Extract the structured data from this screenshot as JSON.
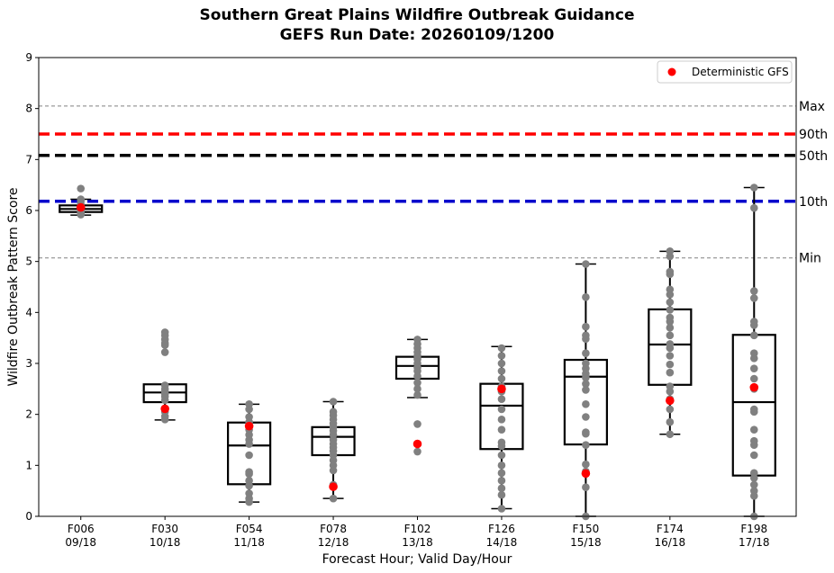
{
  "chart_data": {
    "type": "box",
    "title": "Southern Great Plains Wildfire Outbreak Guidance",
    "subtitle": "GEFS Run Date: 20260109/1200",
    "xlabel": "Forecast Hour; Valid Day/Hour",
    "ylabel": "Wildfire Outbreak Pattern Score",
    "ylim": [
      0,
      9
    ],
    "yticks": [
      0,
      1,
      2,
      3,
      4,
      5,
      6,
      7,
      8,
      9
    ],
    "legend": {
      "label": "Deterministic GFS",
      "position": "top-right",
      "color": "#ff0000"
    },
    "reference_lines": [
      {
        "label": "Max",
        "value": 8.05,
        "color": "#808080",
        "style": "dashed-thin"
      },
      {
        "label": "90th",
        "value": 7.5,
        "color": "#ff0000",
        "style": "dashed-thick"
      },
      {
        "label": "50th",
        "value": 7.08,
        "color": "#000000",
        "style": "dashed-thick"
      },
      {
        "label": "10th",
        "value": 6.18,
        "color": "#0000cc",
        "style": "dashed-thick"
      },
      {
        "label": "Min",
        "value": 5.07,
        "color": "#808080",
        "style": "dashed-thin"
      }
    ],
    "categories": [
      {
        "hour": "F006",
        "valid": "09/18",
        "whisker_low": 5.91,
        "q1": 5.97,
        "median": 6.03,
        "q3": 6.1,
        "whisker_high": 6.22,
        "deterministic": 6.06,
        "members": [
          6.43,
          6.22,
          6.18,
          6.12,
          6.08,
          6.05,
          6.02,
          6.0,
          5.98,
          5.95,
          5.92
        ]
      },
      {
        "hour": "F030",
        "valid": "10/18",
        "whisker_low": 1.89,
        "q1": 2.24,
        "median": 2.43,
        "q3": 2.59,
        "whisker_high": 2.59,
        "deterministic": 2.11,
        "members": [
          3.61,
          3.55,
          3.47,
          3.4,
          3.36,
          3.22,
          2.57,
          2.5,
          2.45,
          2.4,
          2.35,
          2.28,
          2.1,
          2.05,
          1.96,
          1.9
        ]
      },
      {
        "hour": "F054",
        "valid": "11/18",
        "whisker_low": 0.28,
        "q1": 0.63,
        "median": 1.39,
        "q3": 1.84,
        "whisker_high": 2.2,
        "deterministic": 1.77,
        "members": [
          2.2,
          2.1,
          1.95,
          1.85,
          1.78,
          1.7,
          1.6,
          1.5,
          1.42,
          1.2,
          0.87,
          0.83,
          0.7,
          0.6,
          0.45,
          0.35,
          0.28
        ]
      },
      {
        "hour": "F078",
        "valid": "12/18",
        "whisker_low": 0.35,
        "q1": 1.2,
        "median": 1.56,
        "q3": 1.75,
        "whisker_high": 2.25,
        "deterministic": 0.58,
        "members": [
          2.25,
          2.05,
          1.98,
          1.9,
          1.82,
          1.75,
          1.68,
          1.6,
          1.5,
          1.42,
          1.35,
          1.28,
          1.2,
          1.1,
          1.0,
          0.9,
          0.62,
          0.35
        ]
      },
      {
        "hour": "F102",
        "valid": "13/18",
        "whisker_low": 2.33,
        "q1": 2.7,
        "median": 2.95,
        "q3": 3.13,
        "whisker_high": 3.47,
        "deterministic": 1.42,
        "members": [
          3.47,
          3.38,
          3.3,
          3.22,
          3.15,
          3.08,
          3.0,
          2.92,
          2.85,
          2.75,
          2.62,
          2.5,
          2.38,
          1.81,
          1.27
        ]
      },
      {
        "hour": "F126",
        "valid": "14/18",
        "whisker_low": 0.15,
        "q1": 1.32,
        "median": 2.17,
        "q3": 2.6,
        "whisker_high": 3.33,
        "deterministic": 2.5,
        "members": [
          3.3,
          3.15,
          3.0,
          2.85,
          2.7,
          2.55,
          2.45,
          2.3,
          2.1,
          1.9,
          1.7,
          1.45,
          1.38,
          1.2,
          1.0,
          0.85,
          0.7,
          0.55,
          0.42,
          0.15
        ]
      },
      {
        "hour": "F150",
        "valid": "15/18",
        "whisker_low": 0.0,
        "q1": 1.41,
        "median": 2.74,
        "q3": 3.07,
        "whisker_high": 4.95,
        "deterministic": 0.84,
        "members": [
          4.95,
          4.3,
          3.72,
          3.55,
          3.48,
          3.2,
          3.0,
          2.9,
          2.8,
          2.72,
          2.6,
          2.48,
          2.2,
          1.95,
          1.65,
          1.62,
          1.4,
          1.02,
          0.88,
          0.57,
          0.0
        ]
      },
      {
        "hour": "F174",
        "valid": "16/18",
        "whisker_low": 1.61,
        "q1": 2.58,
        "median": 3.37,
        "q3": 4.06,
        "whisker_high": 5.2,
        "deterministic": 2.27,
        "members": [
          5.2,
          5.1,
          4.8,
          4.75,
          4.45,
          4.35,
          4.2,
          4.05,
          3.9,
          3.82,
          3.7,
          3.55,
          3.38,
          3.3,
          3.15,
          2.98,
          2.82,
          2.55,
          2.45,
          2.3,
          2.1,
          1.85,
          1.61
        ]
      },
      {
        "hour": "F198",
        "valid": "17/18",
        "whisker_low": 0.0,
        "q1": 0.8,
        "median": 2.24,
        "q3": 3.56,
        "whisker_high": 6.45,
        "deterministic": 2.53,
        "members": [
          6.45,
          6.05,
          4.42,
          4.28,
          3.82,
          3.75,
          3.55,
          3.2,
          3.1,
          2.9,
          2.7,
          2.5,
          2.1,
          2.05,
          1.7,
          1.48,
          1.4,
          1.2,
          0.85,
          0.75,
          0.62,
          0.5,
          0.4,
          0.0
        ]
      }
    ]
  }
}
